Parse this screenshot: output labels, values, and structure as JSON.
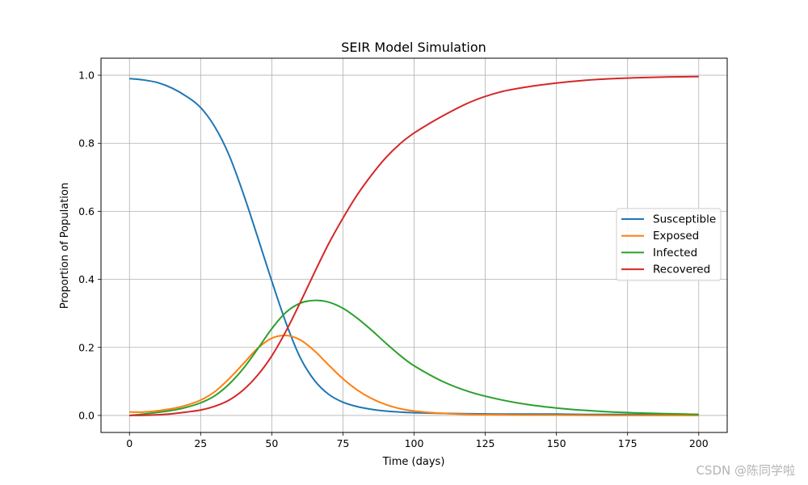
{
  "chart_data": {
    "type": "line",
    "title": "SEIR Model Simulation",
    "xlabel": "Time (days)",
    "ylabel": "Proportion of Population",
    "xlim": [
      -10,
      210
    ],
    "ylim": [
      -0.05,
      1.05
    ],
    "xticks": [
      0,
      25,
      50,
      75,
      100,
      125,
      150,
      175,
      200
    ],
    "yticks": [
      0.0,
      0.2,
      0.4,
      0.6,
      0.8,
      1.0
    ],
    "xtick_labels": [
      "0",
      "25",
      "50",
      "75",
      "100",
      "125",
      "150",
      "175",
      "200"
    ],
    "ytick_labels": [
      "0.0",
      "0.2",
      "0.4",
      "0.6",
      "0.8",
      "1.0"
    ],
    "grid": true,
    "legend_position": "center-right",
    "x": [
      0,
      5,
      10,
      15,
      20,
      25,
      30,
      35,
      40,
      45,
      50,
      55,
      60,
      65,
      70,
      75,
      80,
      85,
      90,
      95,
      100,
      110,
      120,
      130,
      140,
      150,
      160,
      170,
      180,
      190,
      200
    ],
    "series": [
      {
        "name": "Susceptible",
        "color": "#1f77b4",
        "values": [
          0.99,
          0.986,
          0.978,
          0.962,
          0.938,
          0.905,
          0.848,
          0.765,
          0.652,
          0.525,
          0.395,
          0.272,
          0.17,
          0.103,
          0.062,
          0.039,
          0.026,
          0.018,
          0.013,
          0.01,
          0.008,
          0.006,
          0.005,
          0.004,
          0.004,
          0.004,
          0.003,
          0.003,
          0.003,
          0.003,
          0.003
        ]
      },
      {
        "name": "Exposed",
        "color": "#ff7f0e",
        "values": [
          0.01,
          0.01,
          0.014,
          0.02,
          0.03,
          0.045,
          0.07,
          0.108,
          0.152,
          0.197,
          0.227,
          0.235,
          0.222,
          0.19,
          0.148,
          0.108,
          0.075,
          0.05,
          0.032,
          0.02,
          0.013,
          0.006,
          0.003,
          0.002,
          0.001,
          0.001,
          0.0005,
          0.0003,
          0.0002,
          0.0001,
          0.0001
        ]
      },
      {
        "name": "Infected",
        "color": "#2ca02c",
        "values": [
          0.0,
          0.004,
          0.009,
          0.015,
          0.024,
          0.037,
          0.058,
          0.092,
          0.138,
          0.195,
          0.255,
          0.303,
          0.33,
          0.338,
          0.333,
          0.315,
          0.286,
          0.251,
          0.213,
          0.177,
          0.146,
          0.1,
          0.068,
          0.047,
          0.032,
          0.022,
          0.015,
          0.01,
          0.007,
          0.005,
          0.003
        ]
      },
      {
        "name": "Recovered",
        "color": "#d62728",
        "values": [
          0.0,
          0.0005,
          0.002,
          0.005,
          0.01,
          0.016,
          0.027,
          0.045,
          0.075,
          0.118,
          0.175,
          0.248,
          0.332,
          0.42,
          0.505,
          0.58,
          0.648,
          0.706,
          0.757,
          0.798,
          0.83,
          0.88,
          0.922,
          0.95,
          0.966,
          0.977,
          0.985,
          0.99,
          0.993,
          0.995,
          0.996
        ]
      }
    ]
  },
  "watermark": "CSDN @陈同学啦"
}
